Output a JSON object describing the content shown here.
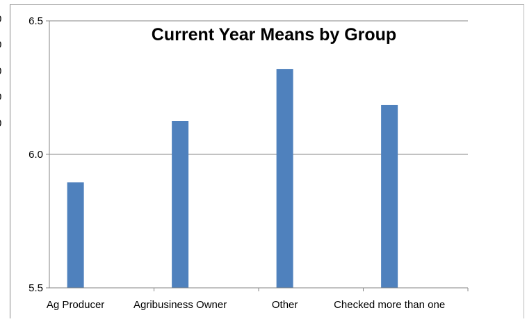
{
  "chart_data": {
    "type": "bar",
    "title": "Current Year Means by Group",
    "categories": [
      "Ag Producer",
      "Agribusiness Owner",
      "Other",
      "Checked more than one"
    ],
    "series": [
      {
        "values": [
          5.895,
          6.125,
          6.32,
          6.185
        ],
        "color": "#4f81bd"
      }
    ],
    "ylim": [
      5.5,
      6.5
    ],
    "yticks": [
      "5.5",
      "6.0",
      "6.5"
    ],
    "grid": true,
    "legend": "none"
  }
}
